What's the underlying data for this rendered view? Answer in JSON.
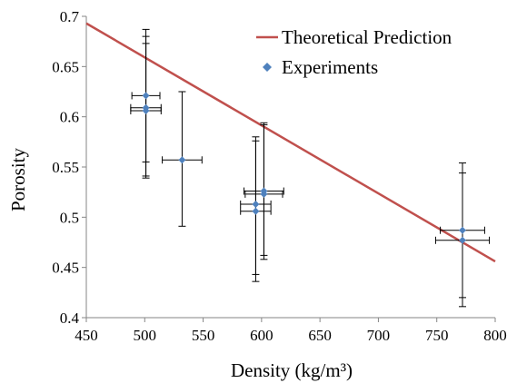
{
  "chart_data": {
    "type": "scatter",
    "title": "",
    "xlabel": "Density (kg/m³)",
    "ylabel": "Porosity",
    "xlim": [
      450,
      800
    ],
    "ylim": [
      0.4,
      0.7
    ],
    "x_ticks": [
      "450",
      "500",
      "550",
      "600",
      "650",
      "700",
      "750",
      "800"
    ],
    "y_ticks": [
      "0.4",
      "0.45",
      "0.5",
      "0.55",
      "0.6",
      "0.65",
      "0.7"
    ],
    "grid": false,
    "legend_position": "top-right",
    "series": [
      {
        "name": "Theoretical Prediction",
        "kind": "line",
        "color": "#c0504d",
        "x": [
          450,
          800
        ],
        "y": [
          0.693,
          0.456
        ]
      },
      {
        "name": "Experiments",
        "kind": "scatter",
        "color": "#4f81bd",
        "points": [
          {
            "x": 501,
            "y": 0.621,
            "xerr": 12,
            "yerr_low": 0.541,
            "yerr_high": 0.687
          },
          {
            "x": 501,
            "y": 0.609,
            "xerr": 13,
            "yerr_low": 0.539,
            "yerr_high": 0.68
          },
          {
            "x": 501,
            "y": 0.606,
            "xerr": 13,
            "yerr_low": 0.555,
            "yerr_high": 0.673
          },
          {
            "x": 532,
            "y": 0.557,
            "xerr": 17,
            "yerr_low": 0.491,
            "yerr_high": 0.625
          },
          {
            "x": 595,
            "y": 0.513,
            "xerr": 13,
            "yerr_low": 0.443,
            "yerr_high": 0.58
          },
          {
            "x": 595,
            "y": 0.506,
            "xerr": 13,
            "yerr_low": 0.436,
            "yerr_high": 0.576
          },
          {
            "x": 602,
            "y": 0.526,
            "xerr": 17,
            "yerr_low": 0.462,
            "yerr_high": 0.594
          },
          {
            "x": 602,
            "y": 0.523,
            "xerr": 16,
            "yerr_low": 0.458,
            "yerr_high": 0.592
          },
          {
            "x": 772,
            "y": 0.487,
            "xerr": 19,
            "yerr_low": 0.42,
            "yerr_high": 0.554
          },
          {
            "x": 772,
            "y": 0.477,
            "xerr": 23,
            "yerr_low": 0.411,
            "yerr_high": 0.544
          }
        ]
      }
    ]
  }
}
